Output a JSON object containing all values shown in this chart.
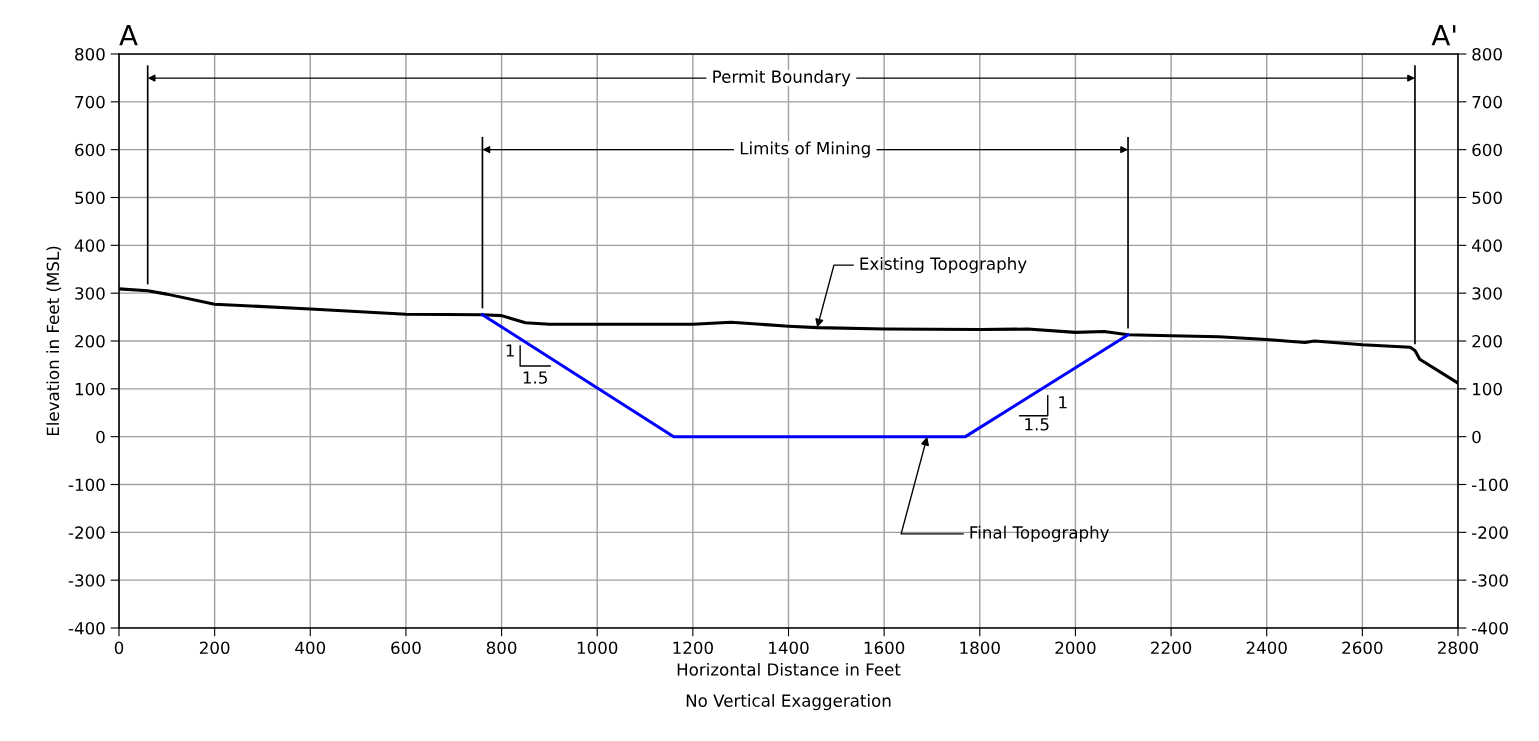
{
  "chart_data": {
    "type": "line",
    "xlabel": "Horizontal Distance in Feet",
    "ylabel": "Elevation in Feet (MSL)",
    "x": [
      0,
      60,
      100,
      200,
      400,
      600,
      760,
      800,
      850,
      900,
      1000,
      1200,
      1280,
      1400,
      1460,
      1600,
      1800,
      1900,
      2000,
      2060,
      2110,
      2200,
      2300,
      2400,
      2480,
      2500,
      2600,
      2700,
      2710,
      2720,
      2800
    ],
    "series": [
      {
        "color": "#000000",
        "values": [
          309,
          305,
          298,
          277,
          267,
          256,
          255,
          253,
          238,
          235,
          235,
          235,
          239,
          231,
          228,
          225,
          224,
          225,
          218,
          220,
          213,
          211,
          209,
          203,
          197,
          200,
          192,
          187,
          180,
          162,
          112
        ]
      },
      {
        "color": "#0000ff",
        "x": [
          760,
          1160,
          1770,
          2110
        ],
        "values": [
          255,
          0,
          0,
          213
        ]
      }
    ],
    "xlim": [
      0,
      2800
    ],
    "xticks": [
      0,
      200,
      400,
      600,
      800,
      1000,
      1200,
      1400,
      1600,
      1800,
      2000,
      2200,
      2400,
      2600,
      2800
    ],
    "ylim": [
      -400,
      800
    ],
    "yticks": [
      -400,
      -300,
      -200,
      -100,
      0,
      100,
      200,
      300,
      400,
      500,
      600,
      700,
      800
    ],
    "y2lim": [
      -400,
      800
    ],
    "y2ticks": [
      -400,
      -300,
      -200,
      -100,
      0,
      100,
      200,
      300,
      400,
      500,
      600,
      700,
      800
    ],
    "grid": true,
    "ref_lines": [
      {
        "axis": "x",
        "value": 60
      },
      {
        "axis": "x",
        "value": 2710
      },
      {
        "axis": "x",
        "value": 760
      },
      {
        "axis": "x",
        "value": 2110
      }
    ],
    "annotations": [
      "A",
      "A'",
      "No Vertical Exaggeration",
      "Permit Boundary",
      {
        "text": "Limits of Mining",
        "x": 760,
        "y": 600
      },
      {
        "text": "Existing Topography",
        "x": 1460,
        "y": 228
      },
      {
        "text": "Final Topography",
        "x": 1690,
        "y": 0
      },
      "1",
      "1.5",
      "1",
      "1.5"
    ]
  }
}
